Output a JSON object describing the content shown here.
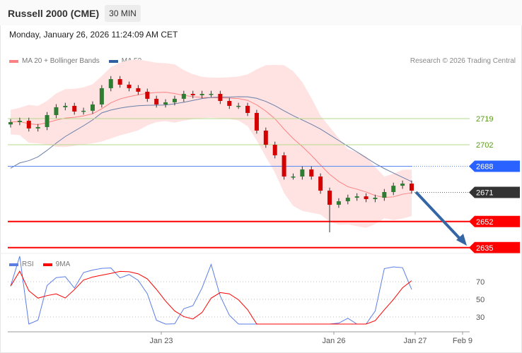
{
  "header": {
    "title": "Russell 2000 (CME)",
    "timeframe": "30 MIN"
  },
  "timestamp": "Monday, January 26, 2026 11:24:09 AM CET",
  "legend": {
    "ma20": "MA 20 + Bollinger Bands",
    "ma50": "MA 50",
    "ma20_color": "#ff8080",
    "ma50_color": "#3060a0"
  },
  "copyright": "Research © 2026 Trading Central",
  "levels": [
    {
      "value": "2719",
      "color": "#7cb342",
      "type": "resistance"
    },
    {
      "value": "2702",
      "color": "#7cb342",
      "type": "resistance"
    },
    {
      "value": "2688",
      "color": "#2962ff",
      "type": "pivot"
    },
    {
      "value": "2671",
      "color": "#333333",
      "type": "last"
    },
    {
      "value": "2652",
      "color": "#ff0000",
      "type": "target"
    },
    {
      "value": "2635",
      "color": "#ff0000",
      "type": "target"
    }
  ],
  "closes": [
    2716.7,
    2717.6,
    2712.6,
    2713.5,
    2721.3,
    2726.4,
    2727.3,
    2723.6,
    2724.1,
    2728.2,
    2738.8,
    2744.7,
    2741.1,
    2738.8,
    2736.5,
    2731.9,
    2728.2,
    2729.6,
    2731.9,
    2735.1,
    2734.2,
    2735.1,
    2735.1,
    2730.5,
    2727.3,
    2727.3,
    2722.7,
    2711.2,
    2702.0,
    2695.1,
    2681.3,
    2681.3,
    2685.9,
    2681.3,
    2672.1,
    2662.9,
    2665.2,
    2667.5,
    2668.4,
    2666.6,
    2667.5,
    2671.2,
    2675.3,
    2676.7,
    2672.1
  ],
  "rsi_panel": {
    "label": "RSI",
    "ma_label": "9MA",
    "levels": [
      "70",
      "50",
      "30"
    ]
  },
  "xaxis": [
    "Jan 23",
    "Jan 26",
    "Jan 27",
    "Feb 9"
  ]
}
